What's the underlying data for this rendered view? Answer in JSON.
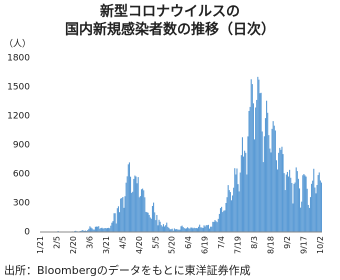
{
  "chart_data": {
    "type": "bar",
    "title": [
      "新型コロナウイルスの",
      "国内新規感染者数の推移（日次）"
    ],
    "y_label": "（人）",
    "source": "出所：Bloombergのデータをもとに東洋証券作成",
    "color": "#5b9bd5",
    "ylim": [
      0,
      1800
    ],
    "yticks": [
      0,
      300,
      600,
      900,
      1200,
      1500,
      1800
    ],
    "grid": false,
    "categories": [
      "1/21",
      null,
      null,
      null,
      null,
      null,
      null,
      null,
      null,
      null,
      null,
      null,
      null,
      null,
      null,
      "2/5",
      null,
      null,
      null,
      null,
      null,
      null,
      null,
      null,
      null,
      null,
      null,
      null,
      null,
      null,
      "2/20",
      null,
      null,
      null,
      null,
      null,
      null,
      null,
      null,
      null,
      null,
      null,
      null,
      null,
      null,
      "3/6",
      null,
      null,
      null,
      null,
      null,
      null,
      null,
      null,
      null,
      null,
      null,
      null,
      null,
      null,
      "3/21",
      null,
      null,
      null,
      null,
      null,
      null,
      null,
      null,
      null,
      null,
      null,
      null,
      null,
      null,
      "4/5",
      null,
      null,
      null,
      null,
      null,
      null,
      null,
      null,
      null,
      null,
      null,
      null,
      null,
      null,
      "4/20",
      null,
      null,
      null,
      null,
      null,
      null,
      null,
      null,
      null,
      null,
      null,
      null,
      null,
      null,
      "5/5",
      null,
      null,
      null,
      null,
      null,
      null,
      null,
      null,
      null,
      null,
      null,
      null,
      null,
      null,
      "5/20",
      null,
      null,
      null,
      null,
      null,
      null,
      null,
      null,
      null,
      null,
      null,
      null,
      null,
      null,
      "6/4",
      null,
      null,
      null,
      null,
      null,
      null,
      null,
      null,
      null,
      null,
      null,
      null,
      null,
      null,
      "6/19",
      null,
      null,
      null,
      null,
      null,
      null,
      null,
      null,
      null,
      null,
      null,
      null,
      null,
      null,
      "7/4",
      null,
      null,
      null,
      null,
      null,
      null,
      null,
      null,
      null,
      null,
      null,
      null,
      null,
      null,
      "7/19",
      null,
      null,
      null,
      null,
      null,
      null,
      null,
      null,
      null,
      null,
      null,
      null,
      null,
      null,
      "8/3",
      null,
      null,
      null,
      null,
      null,
      null,
      null,
      null,
      null,
      null,
      null,
      null,
      null,
      null,
      "8/18",
      null,
      null,
      null,
      null,
      null,
      null,
      null,
      null,
      null,
      null,
      null,
      null,
      null,
      null,
      "9/2",
      null,
      null,
      null,
      null,
      null,
      null,
      null,
      null,
      null,
      null,
      null,
      null,
      null,
      null,
      "9/17",
      null,
      null,
      null,
      null,
      null,
      null,
      null,
      null,
      null,
      null,
      null,
      null,
      null,
      null,
      "10/2",
      null
    ],
    "values": [
      0,
      0,
      0,
      1,
      0,
      1,
      1,
      2,
      1,
      3,
      2,
      5,
      3,
      0,
      0,
      3,
      10,
      2,
      1,
      0,
      0,
      1,
      3,
      2,
      1,
      4,
      3,
      5,
      4,
      6,
      3,
      9,
      12,
      8,
      7,
      5,
      10,
      11,
      20,
      15,
      12,
      15,
      10,
      20,
      33,
      59,
      46,
      37,
      26,
      25,
      54,
      56,
      55,
      60,
      34,
      41,
      44,
      36,
      39,
      41,
      38,
      41,
      43,
      39,
      65,
      96,
      112,
      194,
      194,
      88,
      246,
      266,
      205,
      345,
      351,
      362,
      250,
      370,
      510,
      576,
      700,
      720,
      572,
      405,
      416,
      549,
      584,
      574,
      504,
      568,
      359,
      371,
      442,
      449,
      431,
      359,
      208,
      205,
      199,
      176,
      150,
      137,
      269,
      304,
      203,
      123,
      176,
      69,
      126,
      106,
      71,
      57,
      81,
      57,
      70,
      97,
      53,
      42,
      28,
      29,
      34,
      14,
      37,
      28,
      30,
      26,
      24,
      24,
      59,
      66,
      51,
      40,
      35,
      38,
      49,
      39,
      35,
      46,
      46,
      38,
      44,
      40,
      41,
      39,
      54,
      76,
      48,
      47,
      41,
      69,
      57,
      71,
      70,
      74,
      35,
      55,
      55,
      105,
      105,
      124,
      111,
      102,
      136,
      187,
      247,
      260,
      206,
      221,
      224,
      300,
      360,
      485,
      433,
      413,
      328,
      378,
      458,
      660,
      595,
      657,
      495,
      420,
      615,
      795,
      980,
      780,
      841,
      819,
      595,
      989,
      1252,
      1294,
      1580,
      1530,
      1331,
      958,
      1288,
      1366,
      1605,
      1576,
      1436,
      1440,
      1040,
      723,
      990,
      1178,
      1358,
      1233,
      1002,
      863,
      823,
      1067,
      1147,
      1100,
      1050,
      742,
      647,
      819,
      870,
      850,
      882,
      806,
      609,
      434,
      594,
      621,
      574,
      643,
      561,
      507,
      295,
      498,
      512,
      668,
      630,
      550,
      451,
      252,
      314,
      587,
      600,
      586,
      573,
      447,
      280,
      249,
      361,
      498,
      531,
      654,
      460,
      400,
      486,
      589,
      616,
      533,
      511
    ]
  }
}
